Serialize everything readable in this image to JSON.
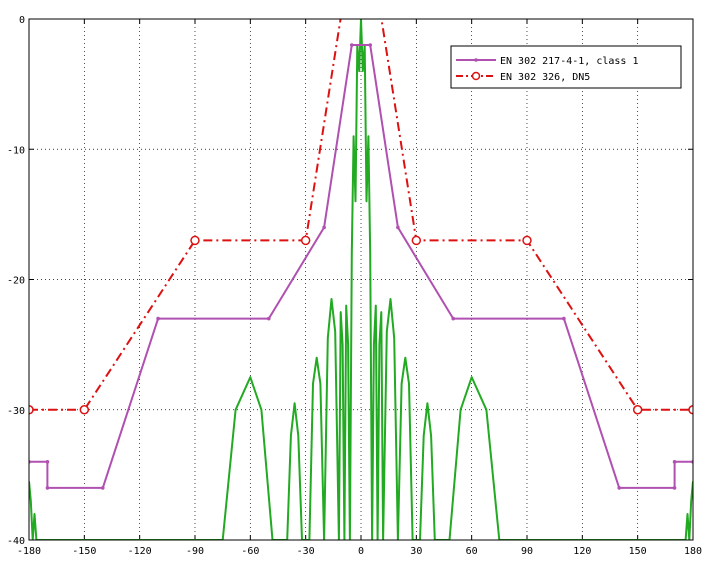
{
  "chart_data": {
    "type": "line",
    "title": "",
    "xlabel": "",
    "ylabel": "",
    "xlim": [
      -180,
      180
    ],
    "ylim": [
      -40,
      0
    ],
    "x_ticks": [
      -180,
      -150,
      -120,
      -90,
      -60,
      -30,
      0,
      30,
      60,
      90,
      120,
      150,
      180
    ],
    "y_ticks": [
      0,
      -10,
      -20,
      -30,
      -40
    ],
    "x_tick_labels": [
      "-180",
      "-150",
      "-120",
      "-90",
      "-60",
      "-30",
      "0",
      "30",
      "60",
      "90",
      "120",
      "150",
      "180"
    ],
    "y_tick_labels": [
      "0",
      "-10",
      "-20",
      "-30",
      "-40"
    ],
    "grid": true,
    "legend_position": "top-right",
    "series": [
      {
        "name": "EN 302 217-4-1, class 1",
        "color": "#b050b0",
        "style": "solid-with-point-markers",
        "x": [
          -180,
          -170,
          -170,
          -140,
          -110,
          -50,
          -20,
          -5,
          5,
          20,
          50,
          110,
          140,
          170,
          170,
          180
        ],
        "y": [
          -34,
          -34,
          -36,
          -36,
          -23,
          -23,
          -16,
          -2,
          -2,
          -16,
          -23,
          -23,
          -36,
          -36,
          -34,
          -34
        ]
      },
      {
        "name": "EN 302 326, DN5",
        "color": "#dd1111",
        "style": "dash-dot-with-circle-markers",
        "x": [
          -180,
          -150,
          -90,
          -30,
          -10,
          10,
          30,
          90,
          150,
          180
        ],
        "y": [
          -30,
          -30,
          -17,
          -17,
          1,
          1,
          -17,
          -17,
          -30,
          -30
        ],
        "marker_x": [
          -180,
          -150,
          -90,
          -30,
          30,
          90,
          150,
          180
        ],
        "marker_y": [
          -30,
          -30,
          -17,
          -17,
          -17,
          -17,
          -30,
          -30
        ]
      },
      {
        "name": "",
        "color": "#22aa22",
        "style": "solid",
        "x": [
          -180,
          -179,
          -178,
          -177,
          -176,
          -75,
          -68,
          -60,
          -54,
          -48,
          -44,
          -40,
          -38,
          -36,
          -34,
          -32,
          -30,
          -28,
          -26,
          -24,
          -22,
          -20,
          -18,
          -16,
          -14,
          -12,
          -11,
          -10,
          -9,
          -8,
          -7,
          -6,
          -5,
          -4,
          -3,
          -2,
          -1,
          0,
          1,
          2,
          3,
          4,
          5,
          6,
          7,
          8,
          9,
          10,
          11,
          12,
          14,
          16,
          18,
          20,
          22,
          24,
          26,
          28,
          30,
          32,
          34,
          36,
          38,
          40,
          44,
          48,
          54,
          60,
          68,
          75,
          176,
          177,
          178,
          179,
          180
        ],
        "y": [
          -35.5,
          -37,
          -40,
          -38,
          -40,
          -40,
          -30,
          -27.5,
          -30,
          -40,
          -40,
          -40,
          -32,
          -29.5,
          -32,
          -40,
          -40,
          -40,
          -28,
          -26,
          -28,
          -40,
          -24.5,
          -21.5,
          -24,
          -40,
          -22.5,
          -25,
          -40,
          -22,
          -25,
          -40,
          -18,
          -9,
          -14,
          -2,
          -4,
          0,
          -4,
          -2,
          -14,
          -9,
          -18,
          -40,
          -25,
          -22,
          -40,
          -25,
          -22.5,
          -40,
          -24,
          -21.5,
          -24.5,
          -40,
          -28,
          -26,
          -28,
          -40,
          -40,
          -40,
          -32,
          -29.5,
          -32,
          -40,
          -40,
          -40,
          -30,
          -27.5,
          -30,
          -40,
          -40,
          -38,
          -40,
          -37,
          -35.5
        ]
      }
    ]
  }
}
